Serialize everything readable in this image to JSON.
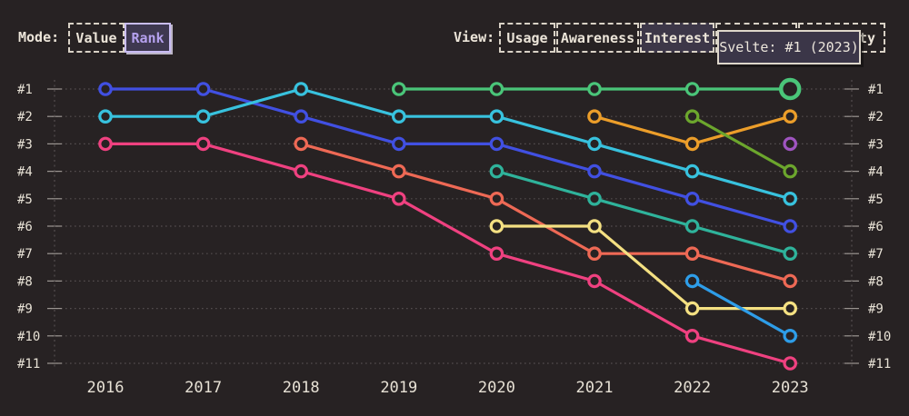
{
  "header": {
    "mode": {
      "label": "Mode:",
      "options": [
        {
          "label": "Value",
          "active": false
        },
        {
          "label": "Rank",
          "active": true
        }
      ]
    },
    "view": {
      "label": "View:",
      "options": [
        {
          "label": "Usage",
          "active": false
        },
        {
          "label": "Awareness",
          "active": false
        },
        {
          "label": "Interest",
          "active": true
        },
        {
          "label": "",
          "active": false
        },
        {
          "label": "ty",
          "active": false
        }
      ]
    }
  },
  "tooltip": {
    "text": "Svelte: #1 (2023)"
  },
  "colors": {
    "background": "#272223",
    "grid": "#544e4f",
    "axis": "#544e4f",
    "tick": "#9a9490",
    "label": "#e7e1d5",
    "header_text": "#ece5d9",
    "button_border": "#d9d2c6",
    "view_active_bg": "#3d3748",
    "rank_active_bg": "#3e3850",
    "rank_active_border": "#c9bcf4",
    "rank_active_text": "#b5a1ee",
    "tooltip_bg": "#3b3648",
    "tooltip_border": "#ddd6ca",
    "tooltip_text": "#ece6dc"
  },
  "chart_data": {
    "type": "line",
    "subtype": "bump-rank",
    "x": [
      2016,
      2017,
      2018,
      2019,
      2020,
      2021,
      2022,
      2023
    ],
    "y_axis": {
      "labels": [
        "#1",
        "#2",
        "#3",
        "#4",
        "#5",
        "#6",
        "#7",
        "#8",
        "#9",
        "#10",
        "#11"
      ],
      "min": 1,
      "max": 11,
      "inverted": true,
      "shown_both_sides": true
    },
    "grid": "dotted-horizontal",
    "legend": "none",
    "series": [
      {
        "id": "indigo",
        "name": "",
        "color": "#4150e2",
        "ranks": [
          1,
          1,
          2,
          3,
          3,
          4,
          5,
          6
        ]
      },
      {
        "id": "cyan",
        "name": "",
        "color": "#38c2de",
        "ranks": [
          2,
          2,
          1,
          2,
          2,
          3,
          4,
          5
        ]
      },
      {
        "id": "rose",
        "name": "",
        "color": "#ef4180",
        "ranks": [
          3,
          3,
          4,
          5,
          7,
          8,
          10,
          11
        ]
      },
      {
        "id": "salmon",
        "name": "",
        "color": "#ee6955",
        "ranks": [
          null,
          null,
          3,
          4,
          5,
          7,
          7,
          8
        ]
      },
      {
        "id": "yellow",
        "name": "",
        "color": "#f4e082",
        "ranks": [
          null,
          null,
          null,
          null,
          6,
          6,
          9,
          9
        ]
      },
      {
        "id": "teal",
        "name": "",
        "color": "#2fb39b",
        "ranks": [
          null,
          null,
          null,
          null,
          4,
          5,
          6,
          7
        ]
      },
      {
        "id": "orange",
        "name": "",
        "color": "#ec9e2a",
        "ranks": [
          null,
          null,
          null,
          null,
          null,
          2,
          3,
          2
        ]
      },
      {
        "id": "olive",
        "name": "",
        "color": "#6ca62d",
        "ranks": [
          null,
          null,
          null,
          null,
          null,
          null,
          2,
          4
        ]
      },
      {
        "id": "sky",
        "name": "",
        "color": "#2e9de8",
        "ranks": [
          null,
          null,
          null,
          null,
          null,
          null,
          8,
          10
        ]
      },
      {
        "id": "purple",
        "name": "",
        "color": "#9f54c0",
        "ranks": [
          null,
          null,
          null,
          null,
          null,
          null,
          null,
          3
        ]
      },
      {
        "id": "green",
        "name": "Svelte",
        "color": "#4ac579",
        "ranks": [
          null,
          null,
          null,
          1,
          1,
          1,
          1,
          1
        ]
      }
    ],
    "highlight": {
      "series_id": "green",
      "year": 2023,
      "rank": 1
    }
  }
}
